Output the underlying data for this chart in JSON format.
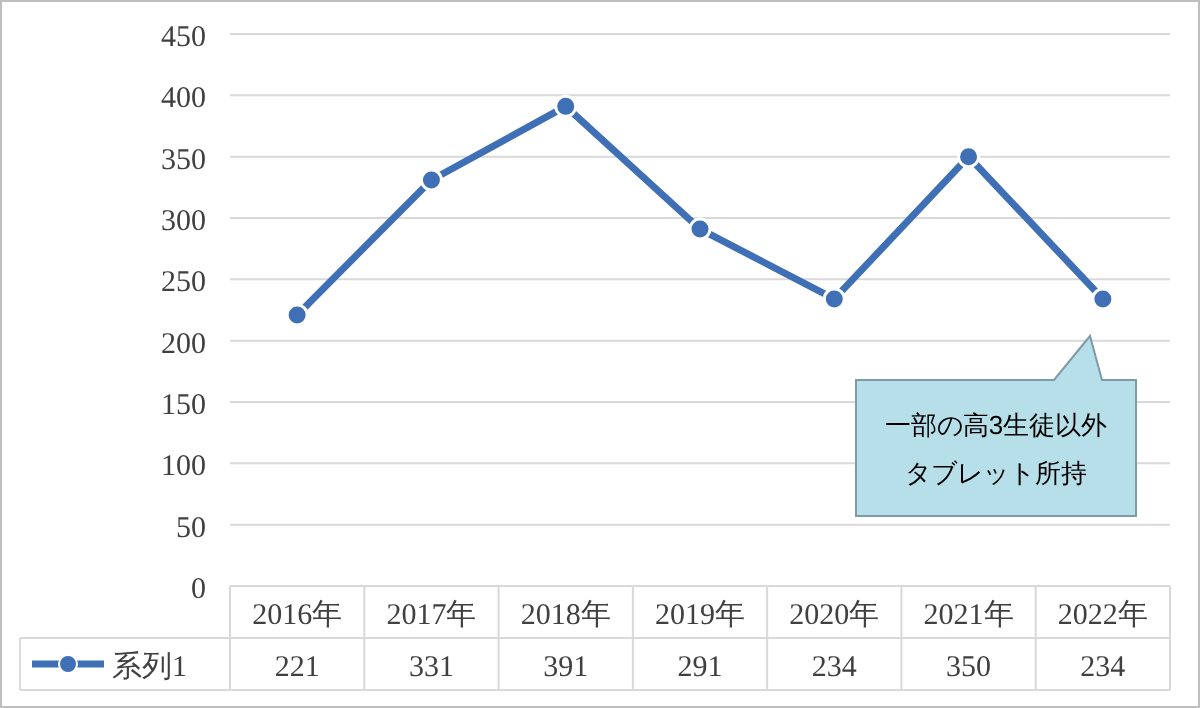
{
  "chart_data": {
    "type": "line",
    "categories": [
      "2016年",
      "2017年",
      "2018年",
      "2019年",
      "2020年",
      "2021年",
      "2022年"
    ],
    "series": [
      {
        "name": "系列1",
        "color": "#3f6fb5",
        "values": [
          221,
          331,
          391,
          291,
          234,
          350,
          234
        ]
      }
    ],
    "ylim": [
      0,
      450
    ],
    "yticks": [
      0,
      50,
      100,
      150,
      200,
      250,
      300,
      350,
      400,
      450
    ],
    "grid": "y",
    "legend": "bottom",
    "marker": "circle",
    "line_style": "solid",
    "data_labels": true,
    "annotations": [
      "一部の高3生徒以外",
      "タブレット所持"
    ]
  }
}
